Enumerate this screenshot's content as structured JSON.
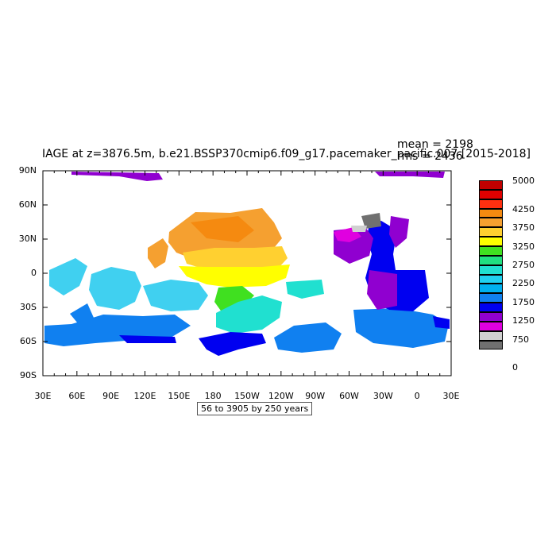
{
  "title": "IAGE at z=3876.5m, b.e21.BSSP370cmip6.f09_g17.pacemaker_pacific.007 [2015-2018]",
  "stats": {
    "mean": "mean = 2198",
    "rms": "rms = 2436"
  },
  "range_label": "56 to 3905 by 250 years",
  "y_axis": {
    "ticks": [
      "90N",
      "60N",
      "30N",
      "0",
      "30S",
      "60S",
      "90S"
    ]
  },
  "x_axis": {
    "ticks": [
      "30E",
      "60E",
      "90E",
      "120E",
      "150E",
      "180",
      "150W",
      "120W",
      "90W",
      "60W",
      "30W",
      "0",
      "30E"
    ]
  },
  "colorbar": {
    "labels": [
      "5000",
      "4250",
      "3750",
      "3250",
      "2750",
      "2250",
      "1750",
      "1250",
      "750",
      "0"
    ],
    "colors": [
      "#c00000",
      "#e00000",
      "#ff3010",
      "#f58a10",
      "#f5a030",
      "#ffd030",
      "#ffff00",
      "#40e020",
      "#20e080",
      "#20e0d0",
      "#20d0f0",
      "#00b0f0",
      "#1080f0",
      "#0000f0",
      "#9000d0",
      "#e000e0",
      "#d0d0d0",
      "#707070"
    ]
  },
  "regions": [
    {
      "name": "north-pacific",
      "color": "#f59a30"
    },
    {
      "name": "central-pacific",
      "color": "#ffd030"
    },
    {
      "name": "equatorial-pacific",
      "color": "#ffff00"
    },
    {
      "name": "south-pacific-green",
      "color": "#40e020"
    },
    {
      "name": "south-pacific-cyan",
      "color": "#20e0d0"
    },
    {
      "name": "indian-ocean",
      "color": "#40d0f0"
    },
    {
      "name": "southern-ocean",
      "color": "#1080f0"
    },
    {
      "name": "north-atlantic-magenta",
      "color": "#e000e0"
    },
    {
      "name": "atlantic-purple",
      "color": "#9000d0"
    },
    {
      "name": "atlantic-blue",
      "color": "#0000f0"
    },
    {
      "name": "arctic-grey",
      "color": "#707070"
    }
  ]
}
